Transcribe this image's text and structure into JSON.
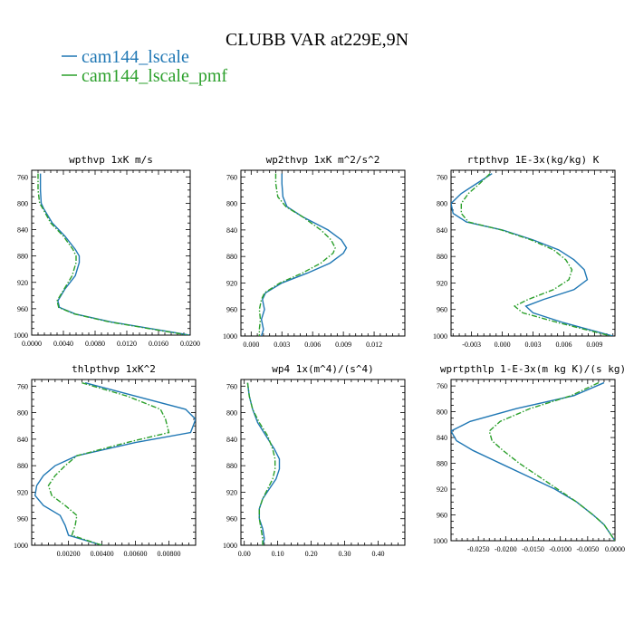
{
  "figure": {
    "title": "CLUBB VAR at229E,9N",
    "legend": [
      {
        "name": "cam144_lscale",
        "color": "#1f77b4",
        "dash": "solid"
      },
      {
        "name": "cam144_lscale_pmf",
        "color": "#2ca02c",
        "dash": "dashdot"
      }
    ]
  },
  "chart_data": [
    {
      "type": "line",
      "title": "wpthvp  1xK m/s",
      "xlim": [
        0,
        0.02
      ],
      "xticks": [
        0,
        0.004,
        0.008,
        0.012,
        0.016,
        0.02
      ],
      "xticklabels": [
        "0.0000",
        "0.0040",
        "0.0080",
        "0.0120",
        "0.0160",
        "0.0200"
      ],
      "ylim": [
        750,
        1000
      ],
      "yticks": [
        760,
        800,
        840,
        880,
        920,
        960,
        1000
      ],
      "yticklabels": [
        "760",
        "800",
        "840",
        "880",
        "920",
        "960",
        "1000"
      ],
      "y": [
        755,
        765,
        780,
        800,
        808,
        830,
        850,
        870,
        880,
        890,
        910,
        930,
        948,
        958,
        968,
        980,
        1000
      ],
      "series": [
        {
          "name": "cam144_lscale",
          "color": "#1f77b4",
          "dash": "solid",
          "x": [
            0.0011,
            0.0011,
            0.0011,
            0.0012,
            0.0015,
            0.0026,
            0.0042,
            0.0055,
            0.006,
            0.006,
            0.0055,
            0.0042,
            0.0033,
            0.0035,
            0.0055,
            0.01,
            0.0199
          ]
        },
        {
          "name": "cam144_lscale_pmf",
          "color": "#2ca02c",
          "dash": "dashdot",
          "x": [
            0.0008,
            0.0008,
            0.0008,
            0.001,
            0.0014,
            0.0024,
            0.004,
            0.0052,
            0.0056,
            0.0056,
            0.0051,
            0.0041,
            0.0032,
            0.0034,
            0.0054,
            0.0098,
            0.0197
          ]
        }
      ]
    },
    {
      "type": "line",
      "title": "wp2thvp  1xK m^2/s^2",
      "xlim": [
        -0.001,
        0.015
      ],
      "xticks": [
        0,
        0.003,
        0.006,
        0.009,
        0.012
      ],
      "xticklabels": [
        "0.000",
        "0.003",
        "0.006",
        "0.009",
        "0.012"
      ],
      "ylim": [
        750,
        1000
      ],
      "yticks": [
        760,
        800,
        840,
        880,
        920,
        960,
        1000
      ],
      "yticklabels": [
        "760",
        "800",
        "840",
        "880",
        "920",
        "960",
        "1000"
      ],
      "y": [
        755,
        770,
        790,
        805,
        820,
        840,
        855,
        867,
        875,
        890,
        905,
        920,
        935,
        945,
        960,
        975,
        990,
        1000
      ],
      "series": [
        {
          "name": "cam144_lscale",
          "color": "#1f77b4",
          "dash": "solid",
          "x": [
            0.003,
            0.003,
            0.0031,
            0.0035,
            0.005,
            0.0075,
            0.0088,
            0.0093,
            0.009,
            0.0077,
            0.0055,
            0.003,
            0.0014,
            0.0011,
            0.0013,
            0.001,
            0.0012,
            0.001
          ]
        },
        {
          "name": "cam144_lscale_pmf",
          "color": "#2ca02c",
          "dash": "dashdot",
          "x": [
            0.0024,
            0.0024,
            0.0026,
            0.0034,
            0.005,
            0.0068,
            0.0078,
            0.0082,
            0.008,
            0.0068,
            0.005,
            0.0028,
            0.0013,
            0.001,
            0.0008,
            0.0009,
            0.0008,
            0.0008
          ]
        }
      ]
    },
    {
      "type": "line",
      "title": "rtpthvp  1E-3x(kg/kg) K",
      "xlim": [
        -0.005,
        0.011
      ],
      "xticks": [
        -0.003,
        0,
        0.003,
        0.006,
        0.009
      ],
      "xticklabels": [
        "-0.003",
        "0.000",
        "0.003",
        "0.006",
        "0.009"
      ],
      "ylim": [
        750,
        1000
      ],
      "yticks": [
        760,
        800,
        840,
        880,
        920,
        960,
        1000
      ],
      "yticklabels": [
        "760",
        "800",
        "840",
        "880",
        "920",
        "960",
        "1000"
      ],
      "y": [
        755,
        770,
        785,
        800,
        815,
        828,
        840,
        855,
        870,
        885,
        900,
        915,
        930,
        945,
        955,
        965,
        980,
        1000
      ],
      "series": [
        {
          "name": "cam144_lscale",
          "color": "#1f77b4",
          "dash": "solid",
          "x": [
            -0.001,
            -0.0025,
            -0.004,
            -0.005,
            -0.0048,
            -0.0035,
            0.0,
            0.003,
            0.0055,
            0.007,
            0.008,
            0.0083,
            0.007,
            0.004,
            0.0023,
            0.003,
            0.006,
            0.0108
          ]
        },
        {
          "name": "cam144_lscale_pmf",
          "color": "#2ca02c",
          "dash": "dashdot",
          "x": [
            -0.0012,
            -0.0022,
            -0.0033,
            -0.004,
            -0.004,
            -0.0033,
            -0.0001,
            0.0028,
            0.005,
            0.0062,
            0.0068,
            0.0065,
            0.005,
            0.0025,
            0.0012,
            0.002,
            0.0055,
            0.0106
          ]
        }
      ]
    },
    {
      "type": "line",
      "title": "thlpthvp  1xK^2",
      "xlim": [
        -0.0002,
        0.0096
      ],
      "xticks": [
        0.002,
        0.004,
        0.006,
        0.008
      ],
      "xticklabels": [
        "0.00200",
        "0.00400",
        "0.00600",
        "0.00800"
      ],
      "ylim": [
        750,
        1000
      ],
      "yticks": [
        760,
        800,
        840,
        880,
        920,
        960,
        1000
      ],
      "yticklabels": [
        "760",
        "800",
        "840",
        "880",
        "920",
        "960",
        "1000"
      ],
      "y": [
        755,
        775,
        795,
        810,
        830,
        845,
        865,
        880,
        895,
        910,
        925,
        940,
        955,
        970,
        985,
        1000
      ],
      "series": [
        {
          "name": "cam144_lscale",
          "color": "#1f77b4",
          "dash": "solid",
          "x": [
            0.003,
            0.006,
            0.009,
            0.0096,
            0.0093,
            0.006,
            0.0025,
            0.0012,
            0.0005,
            0.0001,
            0.0,
            0.0005,
            0.0015,
            0.0018,
            0.002,
            0.004
          ]
        },
        {
          "name": "cam144_lscale_pmf",
          "color": "#2ca02c",
          "dash": "dashdot",
          "x": [
            0.0028,
            0.0055,
            0.0075,
            0.0078,
            0.008,
            0.0055,
            0.0025,
            0.0018,
            0.0012,
            0.0008,
            0.001,
            0.0018,
            0.0025,
            0.0024,
            0.0022,
            0.004
          ]
        }
      ]
    },
    {
      "type": "line",
      "title": "wp4  1x(m^4)/(s^4)",
      "xlim": [
        -0.01,
        0.48
      ],
      "xticks": [
        0,
        0.1,
        0.2,
        0.3,
        0.4
      ],
      "xticklabels": [
        "0.00",
        "0.10",
        "0.20",
        "0.30",
        "0.40"
      ],
      "ylim": [
        750,
        1000
      ],
      "yticks": [
        760,
        800,
        840,
        880,
        920,
        960,
        1000
      ],
      "yticklabels": [
        "760",
        "800",
        "840",
        "880",
        "920",
        "960",
        "1000"
      ],
      "y": [
        755,
        775,
        795,
        815,
        835,
        855,
        870,
        885,
        900,
        915,
        930,
        945,
        960,
        975,
        990,
        1000
      ],
      "series": [
        {
          "name": "cam144_lscale",
          "color": "#1f77b4",
          "dash": "solid",
          "x": [
            0.01,
            0.015,
            0.025,
            0.04,
            0.065,
            0.09,
            0.105,
            0.105,
            0.095,
            0.075,
            0.055,
            0.045,
            0.045,
            0.055,
            0.06,
            0.055
          ]
        },
        {
          "name": "cam144_lscale_pmf",
          "color": "#2ca02c",
          "dash": "dashdot",
          "x": [
            0.01,
            0.015,
            0.025,
            0.045,
            0.07,
            0.085,
            0.092,
            0.092,
            0.085,
            0.07,
            0.055,
            0.045,
            0.045,
            0.05,
            0.055,
            0.055
          ]
        }
      ]
    },
    {
      "type": "line",
      "title": "wprtpthlp  1-E-3x(m kg K)/(s kg)",
      "xlim": [
        -0.03,
        0.0
      ],
      "xticks": [
        -0.025,
        -0.02,
        -0.015,
        -0.01,
        -0.005,
        0
      ],
      "xticklabels": [
        "-0.0250",
        "-0.0200",
        "-0.0150",
        "-0.0100",
        "-0.0050",
        "0.0000"
      ],
      "ylim": [
        750,
        1000
      ],
      "yticks": [
        760,
        800,
        840,
        880,
        920,
        960,
        1000
      ],
      "yticklabels": [
        "760",
        "800",
        "840",
        "880",
        "920",
        "960",
        "1000"
      ],
      "y": [
        755,
        775,
        795,
        815,
        830,
        845,
        860,
        880,
        900,
        920,
        940,
        960,
        975,
        990,
        1000
      ],
      "series": [
        {
          "name": "cam144_lscale",
          "color": "#1f77b4",
          "dash": "solid",
          "x": [
            -0.002,
            -0.0075,
            -0.018,
            -0.0265,
            -0.03,
            -0.029,
            -0.026,
            -0.021,
            -0.016,
            -0.011,
            -0.007,
            -0.004,
            -0.002,
            -0.0008,
            0.0
          ]
        },
        {
          "name": "cam144_lscale_pmf",
          "color": "#2ca02c",
          "dash": "dashdot",
          "x": [
            -0.003,
            -0.008,
            -0.0155,
            -0.021,
            -0.023,
            -0.0225,
            -0.0205,
            -0.0175,
            -0.014,
            -0.0105,
            -0.007,
            -0.004,
            -0.002,
            -0.0008,
            0.0
          ]
        }
      ]
    }
  ]
}
